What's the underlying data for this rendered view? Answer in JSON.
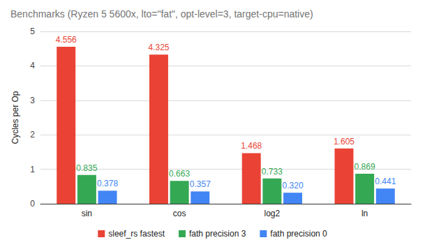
{
  "chart_data": {
    "type": "bar",
    "title": "Benchmarks (Ryzen 5 5600x, lto=\"fat\", opt-level=3, target-cpu=native)",
    "y_label": "Cycles per Op",
    "categories": [
      "sin",
      "cos",
      "log2",
      "ln"
    ],
    "series": [
      {
        "name": "sleef_rs fastest",
        "color": "#ea4335",
        "values": [
          4.556,
          4.325,
          1.468,
          1.605
        ]
      },
      {
        "name": "fath precision 3",
        "color": "#34a853",
        "values": [
          0.835,
          0.663,
          0.733,
          0.869
        ]
      },
      {
        "name": "fath precision 0",
        "color": "#4285f4",
        "values": [
          0.378,
          0.357,
          0.32,
          0.441
        ],
        "value_labels": [
          "0.378",
          "0.357",
          "0.320",
          "0.441"
        ]
      }
    ],
    "ylim": [
      0,
      5
    ],
    "yticks": [
      0,
      1,
      2,
      3,
      4,
      5
    ],
    "grid": true,
    "legend": "bottom",
    "data_labels": true
  }
}
